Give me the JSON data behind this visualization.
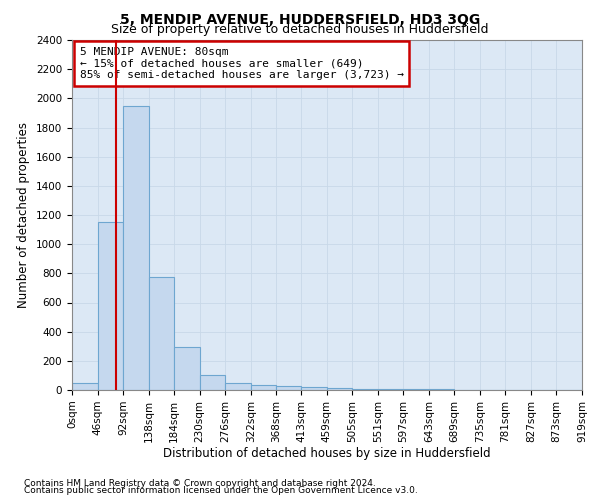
{
  "title1": "5, MENDIP AVENUE, HUDDERSFIELD, HD3 3QG",
  "title2": "Size of property relative to detached houses in Huddersfield",
  "xlabel": "Distribution of detached houses by size in Huddersfield",
  "ylabel": "Number of detached properties",
  "footnote1": "Contains HM Land Registry data © Crown copyright and database right 2024.",
  "footnote2": "Contains public sector information licensed under the Open Government Licence v3.0.",
  "annotation_line1": "5 MENDIP AVENUE: 80sqm",
  "annotation_line2": "← 15% of detached houses are smaller (649)",
  "annotation_line3": "85% of semi-detached houses are larger (3,723) →",
  "bar_color": "#c5d8ee",
  "bar_edge_color": "#6ea6d0",
  "property_line_x": 80,
  "bin_edges": [
    0,
    46,
    92,
    138,
    184,
    230,
    276,
    322,
    368,
    413,
    459,
    505,
    551,
    597,
    643,
    689,
    735,
    781,
    827,
    873,
    919
  ],
  "bar_heights": [
    45,
    1150,
    1950,
    775,
    295,
    100,
    50,
    35,
    30,
    20,
    15,
    10,
    8,
    5,
    4,
    3,
    2,
    1,
    1,
    1
  ],
  "ylim": [
    0,
    2400
  ],
  "yticks": [
    0,
    200,
    400,
    600,
    800,
    1000,
    1200,
    1400,
    1600,
    1800,
    2000,
    2200,
    2400
  ],
  "xtick_labels": [
    "0sqm",
    "46sqm",
    "92sqm",
    "138sqm",
    "184sqm",
    "230sqm",
    "276sqm",
    "322sqm",
    "368sqm",
    "413sqm",
    "459sqm",
    "505sqm",
    "551sqm",
    "597sqm",
    "643sqm",
    "689sqm",
    "735sqm",
    "781sqm",
    "827sqm",
    "873sqm",
    "919sqm"
  ],
  "grid_color": "#c8d8e8",
  "bg_color": "#dce8f5",
  "annotation_box_color": "#ffffff",
  "annotation_box_edge": "#cc0000",
  "red_line_color": "#cc0000",
  "title_fontsize": 10,
  "subtitle_fontsize": 9,
  "axis_label_fontsize": 8.5,
  "tick_fontsize": 7.5,
  "annotation_fontsize": 8,
  "footnote_fontsize": 6.5
}
